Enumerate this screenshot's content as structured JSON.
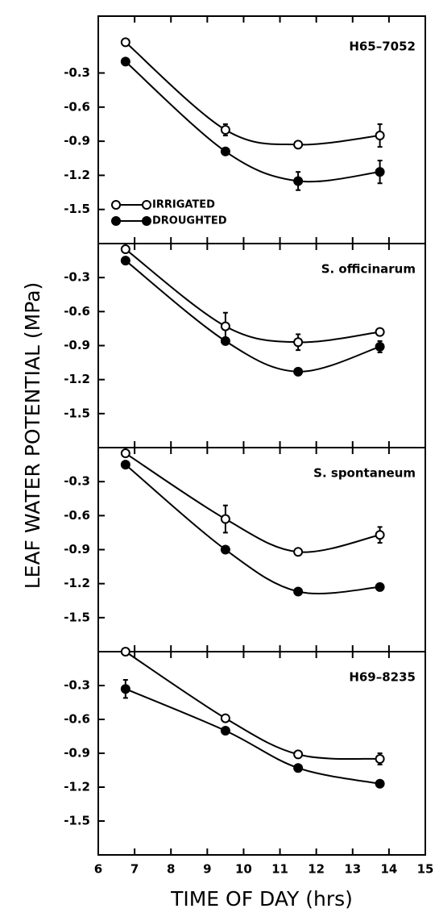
{
  "chart_data": [
    {
      "type": "line",
      "title": "H65–7052",
      "ylabel": "LEAF WATER POTENTIAL (MPa)",
      "x": [
        6.75,
        9.5,
        11.5,
        13.75
      ],
      "xlim": [
        6,
        15
      ],
      "xticks": [
        6,
        7,
        8,
        9,
        10,
        11,
        12,
        13,
        14,
        15
      ],
      "ylim": [
        -1.8,
        0.2
      ],
      "yticks": [
        -0.3,
        -0.6,
        -0.9,
        -1.2,
        -1.5
      ],
      "series": [
        {
          "name": "IRRIGATED",
          "color": "#000",
          "marker": "open",
          "values": [
            -0.03,
            -0.8,
            -0.93,
            -0.85
          ],
          "errors": [
            0,
            0.05,
            0,
            0.1
          ]
        },
        {
          "name": "DROUGHTED",
          "color": "#000",
          "marker": "filled",
          "values": [
            -0.2,
            -0.99,
            -1.25,
            -1.17
          ],
          "errors": [
            0,
            0,
            0.08,
            0.1
          ]
        }
      ]
    },
    {
      "type": "line",
      "title": "S. officinarum",
      "x": [
        6.75,
        9.5,
        11.5,
        13.75
      ],
      "xlim": [
        6,
        15
      ],
      "xticks": [
        6,
        7,
        8,
        9,
        10,
        11,
        12,
        13,
        14,
        15
      ],
      "ylim": [
        -1.8,
        0
      ],
      "yticks": [
        -0.3,
        -0.6,
        -0.9,
        -1.2,
        -1.5
      ],
      "series": [
        {
          "color": "#000",
          "marker": "open",
          "values": [
            -0.05,
            -0.73,
            -0.87,
            -0.78
          ],
          "errors": [
            0,
            0.12,
            0.07,
            0
          ]
        },
        {
          "color": "#000",
          "marker": "filled",
          "values": [
            -0.15,
            -0.86,
            -1.13,
            -0.91
          ],
          "errors": [
            0,
            0,
            0,
            0.05
          ]
        }
      ]
    },
    {
      "type": "line",
      "title": "S. spontaneum",
      "x": [
        6.75,
        9.5,
        11.5,
        13.75
      ],
      "xlim": [
        6,
        15
      ],
      "xticks": [
        6,
        7,
        8,
        9,
        10,
        11,
        12,
        13,
        14,
        15
      ],
      "ylim": [
        -1.8,
        0
      ],
      "yticks": [
        -0.3,
        -0.6,
        -0.9,
        -1.2,
        -1.5
      ],
      "series": [
        {
          "color": "#000",
          "marker": "open",
          "values": [
            -0.05,
            -0.63,
            -0.92,
            -0.77
          ],
          "errors": [
            0,
            0.12,
            0,
            0.07
          ]
        },
        {
          "color": "#000",
          "marker": "filled",
          "values": [
            -0.15,
            -0.9,
            -1.27,
            -1.23
          ],
          "errors": [
            0,
            0,
            0,
            0
          ]
        }
      ]
    },
    {
      "type": "line",
      "title": "H69–8235",
      "xlabel": "TIME OF DAY (hrs)",
      "x": [
        6.75,
        9.5,
        11.5,
        13.75
      ],
      "xlim": [
        6,
        15
      ],
      "xticks": [
        6,
        7,
        8,
        9,
        10,
        11,
        12,
        13,
        14,
        15
      ],
      "ylim": [
        -1.8,
        0
      ],
      "yticks": [
        -0.3,
        -0.6,
        -0.9,
        -1.2,
        -1.5
      ],
      "series": [
        {
          "color": "#000",
          "marker": "open",
          "values": [
            0,
            -0.59,
            -0.91,
            -0.95
          ],
          "errors": [
            0,
            0,
            0,
            0.05
          ]
        },
        {
          "color": "#000",
          "marker": "filled",
          "values": [
            -0.33,
            -0.7,
            -1.03,
            -1.17
          ],
          "errors": [
            0.08,
            0,
            0,
            0
          ]
        }
      ]
    }
  ]
}
